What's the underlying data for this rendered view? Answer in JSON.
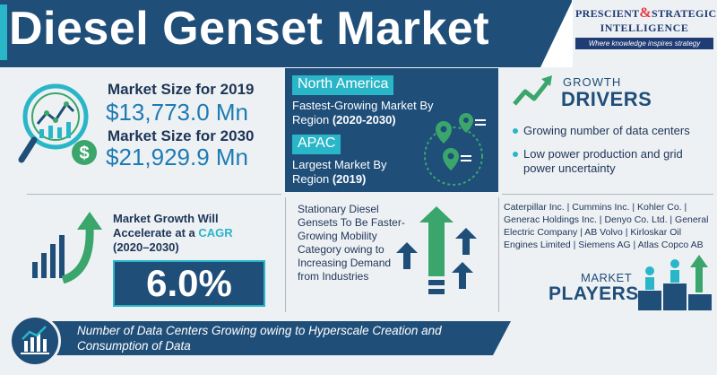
{
  "header": {
    "title": "Diesel Genset Market",
    "logo": {
      "line1": "PRESCIENT",
      "amp": "&",
      "line1b": "STRATEGIC",
      "line2": "INTELLIGENCE",
      "tagline": "Where knowledge inspires strategy"
    }
  },
  "market_size": {
    "icon": "magnifier-chart-icon",
    "label_2019": "Market Size for ",
    "year_2019": "2019",
    "value_2019": "$13,773.0 Mn",
    "label_2030": "Market Size for ",
    "year_2030": "2030",
    "value_2030": "$21,929.9 Mn"
  },
  "regions": {
    "north_america": {
      "name": "North America",
      "desc": "Fastest-Growing Market By Region ",
      "period": "(2020-2030)"
    },
    "apac": {
      "name": "APAC",
      "desc": "Largest Market By Region ",
      "period": "(2019)"
    }
  },
  "growth_drivers": {
    "title_small": "GROWTH",
    "title_big": "DRIVERS",
    "items": [
      "Growing number of data centers",
      "Low power production and grid power uncertainty"
    ]
  },
  "cagr": {
    "text_a": "Market Growth Will Accelerate at a ",
    "text_b": "CAGR",
    "text_c": "(2020–2030)",
    "value": "6.0%"
  },
  "stationary": {
    "text": "Stationary Diesel Gensets To Be Faster-Growing Mobility Category owing to Increasing Demand from Industries"
  },
  "players": {
    "list": "Caterpillar Inc. | Cummins Inc. | Kohler Co. | Generac Holdings Inc. | Denyo Co. Ltd. | General Electric Company | AB Volvo | Kirloskar Oil Engines Limited | Siemens AG | Atlas Copco AB",
    "title_small": "MARKET",
    "title_big": "PLAYERS"
  },
  "footer": {
    "text": "Number of Data Centers Growing owing to Hyperscale Creation and Consumption of Data"
  },
  "colors": {
    "navy": "#1f4e79",
    "teal": "#29b6c8",
    "green": "#3aa66b",
    "background": "#eef1f4"
  }
}
